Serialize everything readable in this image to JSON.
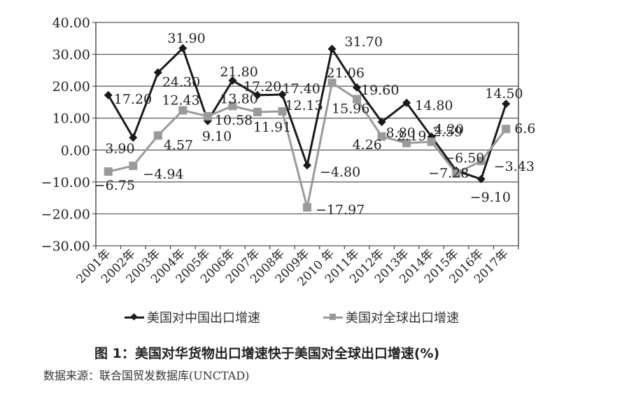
{
  "chart_data": {
    "type": "line",
    "title": "图 1：美国对华货物出口增速快于美国对全球出口增速(%)",
    "xlabel": "",
    "ylabel": "",
    "ylim": [
      -30,
      40
    ],
    "yticks": [
      "40.00",
      "30.00",
      "20.00",
      "10.00",
      "0.00",
      "-10.00",
      "-20.00",
      "-30.00"
    ],
    "grid": true,
    "legend_position": "bottom",
    "categories": [
      "2001年",
      "2002年",
      "2003年",
      "2004年",
      "2005年",
      "2006年",
      "2007年",
      "2008年",
      "2009年",
      "2010 年",
      "2011年",
      "2012年",
      "2013年",
      "2014年",
      "2015年",
      "2016年",
      "2017年"
    ],
    "series": [
      {
        "name": "美国对中国出口增速",
        "color": "#1a1a1a",
        "marker": "diamond",
        "values": [
          17.2,
          3.9,
          24.3,
          31.9,
          9.1,
          21.8,
          17.2,
          17.4,
          -4.8,
          31.7,
          19.6,
          8.8,
          14.8,
          4.2,
          -6.5,
          -9.1,
          14.5
        ],
        "labels": [
          "17.20",
          "3.90",
          "24.30",
          "31.90",
          "9.10",
          "21.80",
          "17.20",
          "17.40",
          "−4.80",
          "31.70",
          "19.60",
          "8.80",
          "14.80",
          "4.20",
          "−6.50",
          "−9.10",
          "14.50"
        ]
      },
      {
        "name": "美国对全球出口增速",
        "color": "#9a9a9a",
        "marker": "square",
        "values": [
          -6.75,
          -4.94,
          4.57,
          12.43,
          10.58,
          13.8,
          11.91,
          12.13,
          -17.97,
          21.06,
          15.96,
          4.26,
          2.19,
          2.59,
          -7.28,
          -3.43,
          6.6
        ],
        "labels": [
          "−6.75",
          "−4.94",
          "4.57",
          "12.43",
          "10.58",
          "13.80",
          "11.91",
          "12.13",
          "−17.97",
          "21.06",
          "15.96",
          "4.26",
          "2.19",
          "2.59",
          "−7.28",
          "−3.43",
          "6.6"
        ]
      }
    ]
  },
  "legend": {
    "china": "美国对中国出口增速",
    "global": "美国对全球出口增速"
  },
  "caption": "图 1：美国对华货物出口增速快于美国对全球出口增速(%)",
  "source": "数据来源：联合国贸发数据库(UNCTAD)"
}
